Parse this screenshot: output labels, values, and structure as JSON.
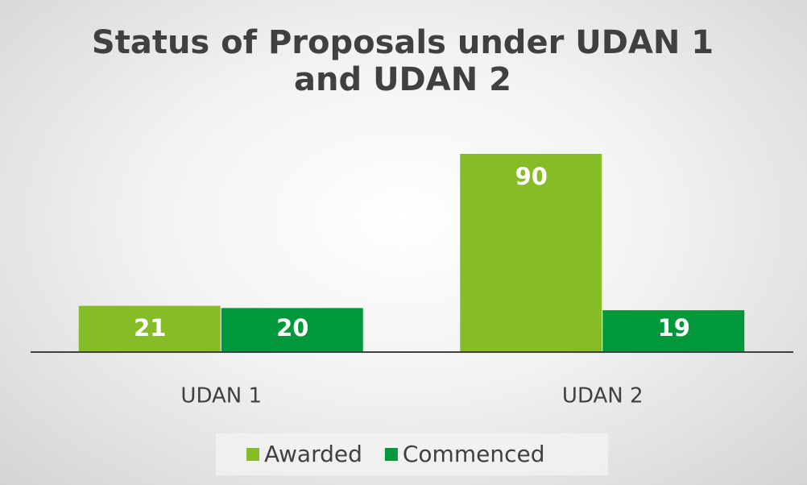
{
  "chart_data": {
    "type": "bar",
    "title": "Status of Proposals under UDAN 1 and UDAN 2",
    "categories": [
      "UDAN 1",
      "UDAN 2"
    ],
    "series": [
      {
        "name": "Awarded",
        "color": "#86bc25",
        "values": [
          21,
          90
        ]
      },
      {
        "name": "Commenced",
        "color": "#00983a",
        "values": [
          20,
          19
        ]
      }
    ],
    "legend": "bottom"
  }
}
